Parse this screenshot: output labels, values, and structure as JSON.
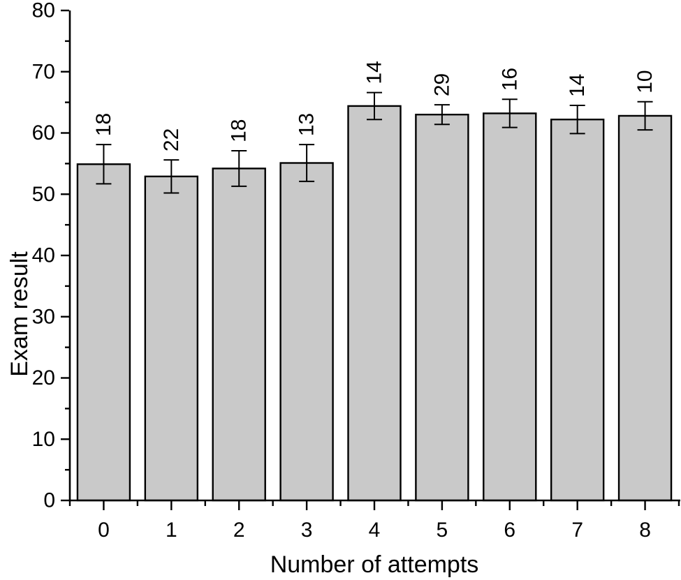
{
  "chart_data": {
    "type": "bar",
    "title": "",
    "xlabel": "Number of attempts",
    "ylabel": "Exam result",
    "categories": [
      "0",
      "1",
      "2",
      "3",
      "4",
      "5",
      "6",
      "7",
      "8"
    ],
    "values": [
      54.9,
      52.9,
      54.2,
      55.1,
      64.4,
      63.0,
      63.2,
      62.2,
      62.8
    ],
    "errors": [
      3.2,
      2.7,
      2.9,
      3.0,
      2.2,
      1.6,
      2.3,
      2.3,
      2.3
    ],
    "bar_labels": [
      "18",
      "22",
      "18",
      "13",
      "14",
      "29",
      "16",
      "14",
      "10"
    ],
    "ylim": [
      0,
      80
    ],
    "y_major_ticks": [
      0,
      10,
      20,
      30,
      40,
      50,
      60,
      70,
      80
    ],
    "y_minor_step": 5,
    "grid": false,
    "legend": null,
    "bar_fill": "#c9c9c9",
    "bar_stroke": "#000000",
    "axis_color": "#000000",
    "error_bar_color": "#000000",
    "background_color": "#ffffff"
  }
}
